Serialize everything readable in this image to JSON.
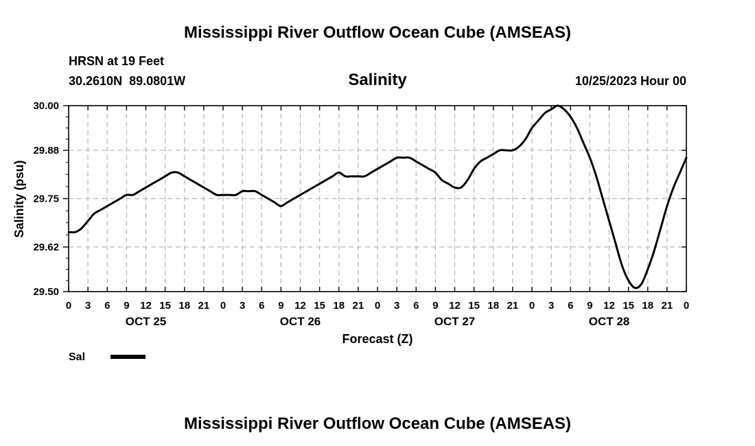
{
  "header": {
    "title": "Mississippi River Outflow Ocean Cube (AMSEAS)",
    "station": "HRSN at 19 Feet",
    "coords": "30.2610N  89.0801W",
    "variable": "Salinity",
    "datetime": "10/25/2023 Hour 00"
  },
  "footer": {
    "title": "Mississippi River Outflow Ocean Cube (AMSEAS)"
  },
  "legend": {
    "label": "Sal"
  },
  "chart_data": {
    "type": "line",
    "title": "Salinity",
    "xlabel": "Forecast (Z)",
    "ylabel": "Salinity (psu)",
    "x_unit": "forecast hour",
    "xlim": [
      0,
      96
    ],
    "ylim": [
      29.5,
      30.0
    ],
    "yticks": [
      29.5,
      29.62,
      29.75,
      29.88,
      30.0
    ],
    "ytick_labels": [
      "29.50",
      "29.62",
      "29.75",
      "29.88",
      "30.00"
    ],
    "xtick_hours": [
      0,
      3,
      6,
      9,
      12,
      15,
      18,
      21,
      24,
      27,
      30,
      33,
      36,
      39,
      42,
      45,
      48,
      51,
      54,
      57,
      60,
      63,
      66,
      69,
      72,
      75,
      78,
      81,
      84,
      87,
      90,
      93,
      96
    ],
    "xtick_labels": [
      "0",
      "3",
      "6",
      "9",
      "12",
      "15",
      "18",
      "21",
      "0",
      "3",
      "6",
      "9",
      "12",
      "15",
      "18",
      "21",
      "0",
      "3",
      "6",
      "9",
      "12",
      "15",
      "18",
      "21",
      "0",
      "3",
      "6",
      "9",
      "12",
      "15",
      "18",
      "21",
      "0"
    ],
    "day_labels": [
      {
        "hour": 12,
        "label": "OCT 25"
      },
      {
        "hour": 36,
        "label": "OCT 26"
      },
      {
        "hour": 60,
        "label": "OCT 27"
      },
      {
        "hour": 84,
        "label": "OCT 28"
      }
    ],
    "grid": true,
    "series": [
      {
        "name": "Sal",
        "color": "#000000",
        "x": [
          0,
          1,
          2,
          3,
          4,
          5,
          6,
          7,
          8,
          9,
          10,
          11,
          12,
          13,
          14,
          15,
          16,
          17,
          18,
          19,
          20,
          21,
          22,
          23,
          24,
          25,
          26,
          27,
          28,
          29,
          30,
          31,
          32,
          33,
          34,
          35,
          36,
          37,
          38,
          39,
          40,
          41,
          42,
          43,
          44,
          45,
          46,
          47,
          48,
          49,
          50,
          51,
          52,
          53,
          54,
          55,
          56,
          57,
          58,
          59,
          60,
          61,
          62,
          63,
          64,
          65,
          66,
          67,
          68,
          69,
          70,
          71,
          72,
          73,
          74,
          75,
          76,
          77,
          78,
          79,
          80,
          81,
          82,
          83,
          84,
          85,
          86,
          87,
          88,
          89,
          90,
          91,
          92,
          93,
          94,
          95,
          96
        ],
        "values": [
          29.66,
          29.66,
          29.67,
          29.69,
          29.71,
          29.72,
          29.73,
          29.74,
          29.75,
          29.76,
          29.76,
          29.77,
          29.78,
          29.79,
          29.8,
          29.81,
          29.82,
          29.82,
          29.81,
          29.8,
          29.79,
          29.78,
          29.77,
          29.76,
          29.76,
          29.76,
          29.76,
          29.77,
          29.77,
          29.77,
          29.76,
          29.75,
          29.74,
          29.73,
          29.74,
          29.75,
          29.76,
          29.77,
          29.78,
          29.79,
          29.8,
          29.81,
          29.82,
          29.81,
          29.81,
          29.81,
          29.81,
          29.82,
          29.83,
          29.84,
          29.85,
          29.86,
          29.86,
          29.86,
          29.85,
          29.84,
          29.83,
          29.82,
          29.8,
          29.79,
          29.78,
          29.78,
          29.8,
          29.83,
          29.85,
          29.86,
          29.87,
          29.88,
          29.88,
          29.88,
          29.89,
          29.91,
          29.94,
          29.96,
          29.98,
          29.99,
          30.0,
          29.99,
          29.97,
          29.94,
          29.9,
          29.86,
          29.81,
          29.75,
          29.69,
          29.63,
          29.57,
          29.53,
          29.51,
          29.52,
          29.56,
          29.61,
          29.67,
          29.73,
          29.78,
          29.82,
          29.86
        ]
      }
    ]
  }
}
